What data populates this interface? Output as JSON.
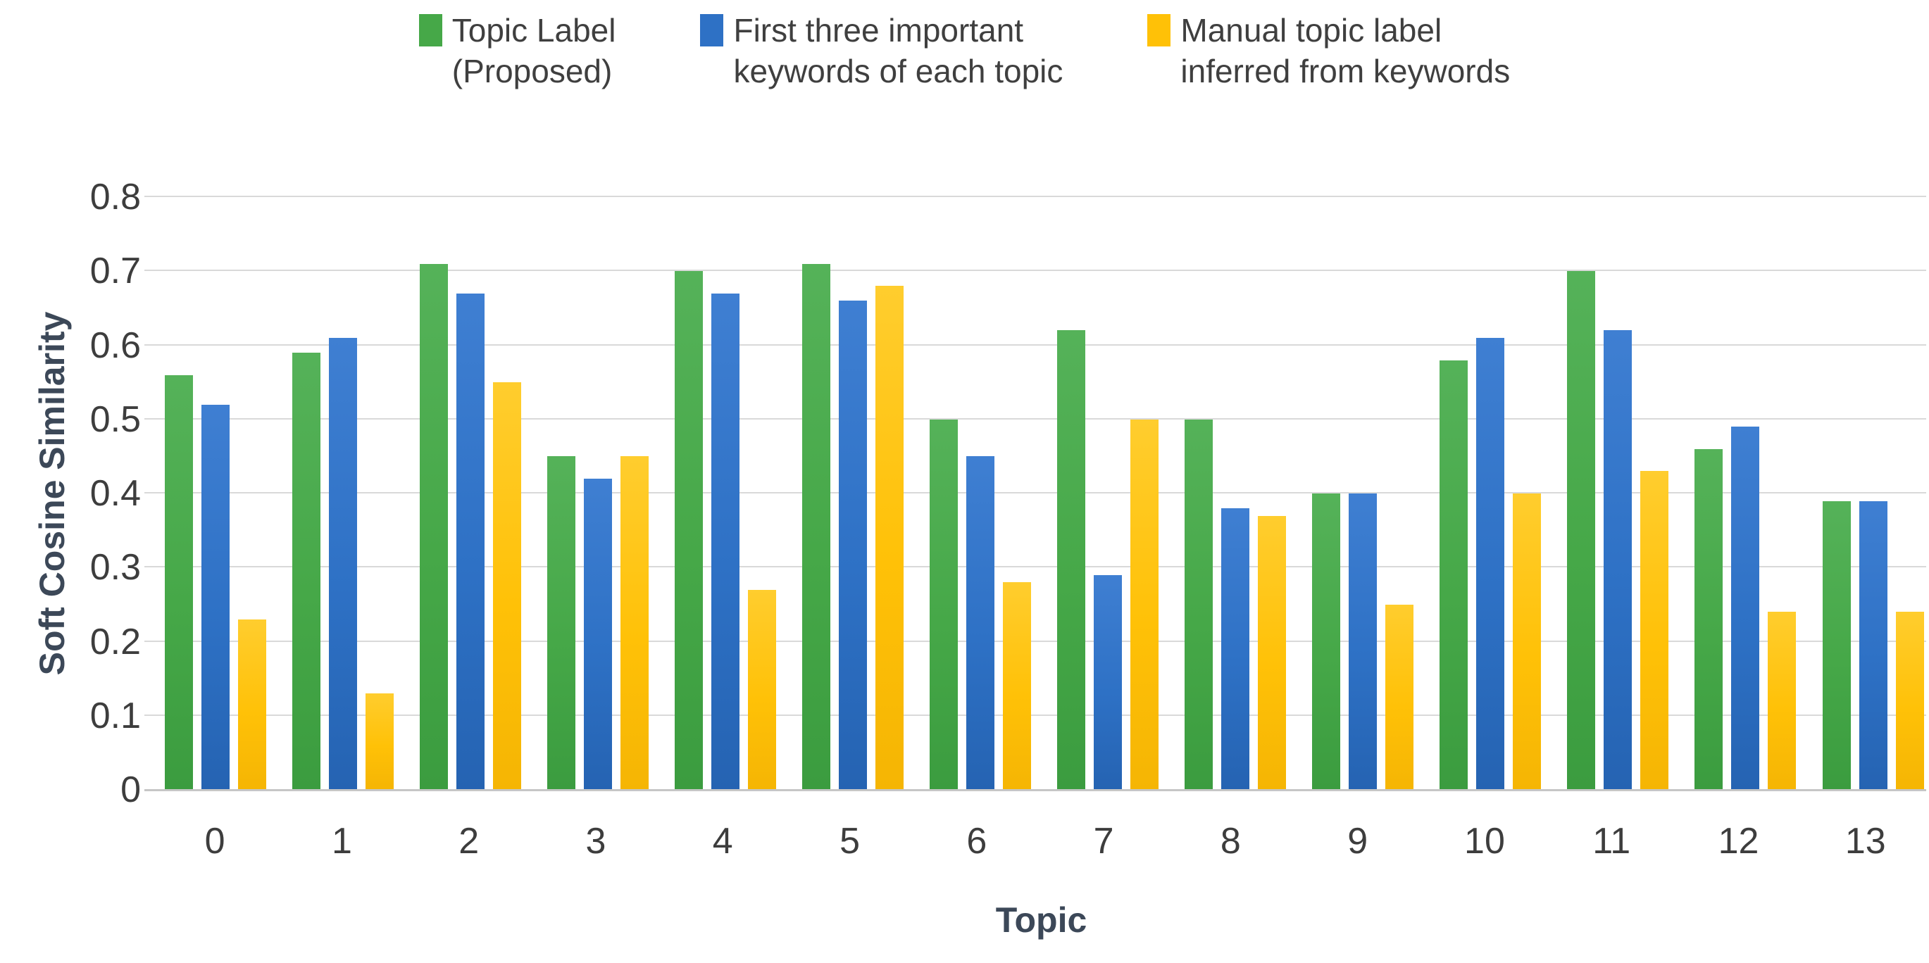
{
  "chart_data": {
    "type": "bar",
    "title": "",
    "xlabel": "Topic",
    "ylabel": "Soft Cosine Similarity",
    "categories": [
      "0",
      "1",
      "2",
      "3",
      "4",
      "5",
      "6",
      "7",
      "8",
      "9",
      "10",
      "11",
      "12",
      "13"
    ],
    "series": [
      {
        "name": "Topic Label (Proposed)",
        "label_lines": "Topic Label\n(Proposed)",
        "color": "#46a848",
        "values": [
          0.56,
          0.59,
          0.71,
          0.45,
          0.7,
          0.71,
          0.5,
          0.62,
          0.5,
          0.4,
          0.58,
          0.7,
          0.46,
          0.39
        ]
      },
      {
        "name": "First three important keywords of each topic",
        "label_lines": "First three important\nkeywords of each topic",
        "color": "#2e71c5",
        "values": [
          0.52,
          0.61,
          0.67,
          0.42,
          0.67,
          0.66,
          0.45,
          0.29,
          0.38,
          0.4,
          0.61,
          0.62,
          0.49,
          0.39
        ]
      },
      {
        "name": "Manual topic label inferred from keywords",
        "label_lines": "Manual topic label\ninferred from keywords",
        "color": "#ffc107",
        "values": [
          0.23,
          0.13,
          0.55,
          0.45,
          0.27,
          0.68,
          0.28,
          0.5,
          0.37,
          0.25,
          0.4,
          0.43,
          0.24,
          0.24
        ]
      }
    ],
    "ylim": [
      0,
      0.8
    ],
    "yticks": [
      "0",
      "0.1",
      "0.2",
      "0.3",
      "0.4",
      "0.5",
      "0.6",
      "0.7",
      "0.8"
    ],
    "grid": "horizontal",
    "legend_position": "top",
    "colors": {
      "gridline": "#d9d9d9",
      "axis_line": "#c6c6c6",
      "tick_text": "#3d3d3d",
      "legend_text": "#3f3f3f",
      "axis_title_text": "#3c4858"
    }
  }
}
